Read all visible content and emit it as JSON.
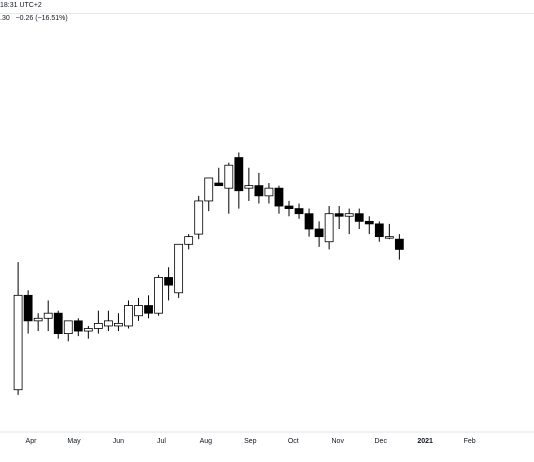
{
  "header": {
    "time_text": "18:31 UTC+2",
    "price_text": ".30",
    "change_text": "−0.26 (−16.51%)"
  },
  "chart_data": {
    "type": "candlestick",
    "title": "",
    "xlabel": "",
    "ylabel": "",
    "x_axis_labels": [
      {
        "label": "Apr",
        "date": "2020-04-01",
        "bold": false
      },
      {
        "label": "May",
        "date": "2020-05-01",
        "bold": false
      },
      {
        "label": "Jun",
        "date": "2020-06-01",
        "bold": false
      },
      {
        "label": "Jul",
        "date": "2020-07-01",
        "bold": false
      },
      {
        "label": "Aug",
        "date": "2020-08-01",
        "bold": false
      },
      {
        "label": "Sep",
        "date": "2020-09-01",
        "bold": false
      },
      {
        "label": "Oct",
        "date": "2020-10-01",
        "bold": false
      },
      {
        "label": "Nov",
        "date": "2020-11-01",
        "bold": false
      },
      {
        "label": "Dec",
        "date": "2020-12-01",
        "bold": false
      },
      {
        "label": "2021",
        "date": "2021-01-01",
        "bold": true
      },
      {
        "label": "Feb",
        "date": "2021-02-01",
        "bold": false
      }
    ],
    "ylim": [
      0.8,
      2.36
    ],
    "grid": false,
    "legend": "none",
    "colors": {
      "up": "#ffffff",
      "down": "#000000",
      "wick": "#000000"
    },
    "candles": [
      {
        "date": "2020-03-23",
        "open": 0.95,
        "high": 1.45,
        "low": 0.93,
        "close": 1.32
      },
      {
        "date": "2020-03-30",
        "open": 1.32,
        "high": 1.34,
        "low": 1.17,
        "close": 1.22
      },
      {
        "date": "2020-04-06",
        "open": 1.22,
        "high": 1.25,
        "low": 1.18,
        "close": 1.23
      },
      {
        "date": "2020-04-13",
        "open": 1.23,
        "high": 1.3,
        "low": 1.18,
        "close": 1.25
      },
      {
        "date": "2020-04-20",
        "open": 1.25,
        "high": 1.26,
        "low": 1.15,
        "close": 1.17
      },
      {
        "date": "2020-04-27",
        "open": 1.17,
        "high": 1.22,
        "low": 1.14,
        "close": 1.22
      },
      {
        "date": "2020-05-04",
        "open": 1.22,
        "high": 1.23,
        "low": 1.16,
        "close": 1.18
      },
      {
        "date": "2020-05-11",
        "open": 1.18,
        "high": 1.2,
        "low": 1.15,
        "close": 1.19
      },
      {
        "date": "2020-05-18",
        "open": 1.19,
        "high": 1.26,
        "low": 1.17,
        "close": 1.21
      },
      {
        "date": "2020-05-25",
        "open": 1.2,
        "high": 1.26,
        "low": 1.18,
        "close": 1.22
      },
      {
        "date": "2020-06-01",
        "open": 1.2,
        "high": 1.25,
        "low": 1.18,
        "close": 1.21
      },
      {
        "date": "2020-06-08",
        "open": 1.2,
        "high": 1.3,
        "low": 1.19,
        "close": 1.28
      },
      {
        "date": "2020-06-15",
        "open": 1.24,
        "high": 1.31,
        "low": 1.22,
        "close": 1.28
      },
      {
        "date": "2020-06-22",
        "open": 1.28,
        "high": 1.32,
        "low": 1.23,
        "close": 1.25
      },
      {
        "date": "2020-06-29",
        "open": 1.25,
        "high": 1.4,
        "low": 1.24,
        "close": 1.39
      },
      {
        "date": "2020-07-06",
        "open": 1.39,
        "high": 1.43,
        "low": 1.3,
        "close": 1.36
      },
      {
        "date": "2020-07-13",
        "open": 1.33,
        "high": 1.52,
        "low": 1.31,
        "close": 1.52
      },
      {
        "date": "2020-07-20",
        "open": 1.52,
        "high": 1.56,
        "low": 1.5,
        "close": 1.55
      },
      {
        "date": "2020-07-27",
        "open": 1.56,
        "high": 1.71,
        "low": 1.54,
        "close": 1.69
      },
      {
        "date": "2020-08-03",
        "open": 1.69,
        "high": 1.78,
        "low": 1.65,
        "close": 1.78
      },
      {
        "date": "2020-08-10",
        "open": 1.76,
        "high": 1.82,
        "low": 1.75,
        "close": 1.75
      },
      {
        "date": "2020-08-17",
        "open": 1.74,
        "high": 1.84,
        "low": 1.64,
        "close": 1.83
      },
      {
        "date": "2020-08-24",
        "open": 1.86,
        "high": 1.88,
        "low": 1.66,
        "close": 1.73
      },
      {
        "date": "2020-08-31",
        "open": 1.74,
        "high": 1.82,
        "low": 1.69,
        "close": 1.75
      },
      {
        "date": "2020-09-07",
        "open": 1.75,
        "high": 1.8,
        "low": 1.68,
        "close": 1.71
      },
      {
        "date": "2020-09-14",
        "open": 1.71,
        "high": 1.76,
        "low": 1.68,
        "close": 1.74
      },
      {
        "date": "2020-09-21",
        "open": 1.74,
        "high": 1.75,
        "low": 1.64,
        "close": 1.67
      },
      {
        "date": "2020-09-28",
        "open": 1.67,
        "high": 1.69,
        "low": 1.63,
        "close": 1.66
      },
      {
        "date": "2020-10-05",
        "open": 1.66,
        "high": 1.68,
        "low": 1.62,
        "close": 1.64
      },
      {
        "date": "2020-10-12",
        "open": 1.64,
        "high": 1.66,
        "low": 1.55,
        "close": 1.58
      },
      {
        "date": "2020-10-19",
        "open": 1.58,
        "high": 1.61,
        "low": 1.51,
        "close": 1.55
      },
      {
        "date": "2020-10-26",
        "open": 1.53,
        "high": 1.67,
        "low": 1.5,
        "close": 1.64
      },
      {
        "date": "2020-11-02",
        "open": 1.64,
        "high": 1.67,
        "low": 1.58,
        "close": 1.63
      },
      {
        "date": "2020-11-09",
        "open": 1.63,
        "high": 1.66,
        "low": 1.56,
        "close": 1.64
      },
      {
        "date": "2020-11-16",
        "open": 1.64,
        "high": 1.66,
        "low": 1.58,
        "close": 1.61
      },
      {
        "date": "2020-11-23",
        "open": 1.61,
        "high": 1.63,
        "low": 1.56,
        "close": 1.6
      },
      {
        "date": "2020-11-30",
        "open": 1.6,
        "high": 1.61,
        "low": 1.53,
        "close": 1.55
      },
      {
        "date": "2020-12-07",
        "open": 1.55,
        "high": 1.6,
        "low": 1.54,
        "close": 1.55
      },
      {
        "date": "2020-12-14",
        "open": 1.54,
        "high": 1.56,
        "low": 1.46,
        "close": 1.5
      }
    ]
  }
}
